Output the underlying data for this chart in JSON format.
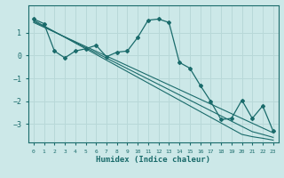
{
  "xlabel": "Humidex (Indice chaleur)",
  "bg_color": "#cce8e8",
  "line_color": "#1a6b6b",
  "grid_color": "#b8d8d8",
  "x_data": [
    0,
    1,
    2,
    3,
    4,
    5,
    6,
    7,
    8,
    9,
    10,
    11,
    12,
    13,
    14,
    15,
    16,
    17,
    18,
    19,
    20,
    21,
    22,
    23
  ],
  "y_main": [
    1.6,
    1.4,
    0.2,
    -0.1,
    0.2,
    0.3,
    0.45,
    -0.05,
    0.15,
    0.2,
    0.8,
    1.55,
    1.6,
    1.45,
    -0.3,
    -0.55,
    -1.3,
    -2.0,
    -2.8,
    -2.75,
    -1.95,
    -2.75,
    -2.2,
    -3.3
  ],
  "y_line1": [
    1.55,
    1.3,
    1.05,
    0.8,
    0.55,
    0.3,
    0.05,
    -0.2,
    -0.45,
    -0.7,
    -0.95,
    -1.2,
    -1.45,
    -1.7,
    -1.95,
    -2.2,
    -2.45,
    -2.7,
    -2.95,
    -3.2,
    -3.45,
    -3.55,
    -3.62,
    -3.7
  ],
  "y_line2": [
    1.5,
    1.27,
    1.04,
    0.81,
    0.58,
    0.35,
    0.12,
    -0.11,
    -0.34,
    -0.57,
    -0.8,
    -1.03,
    -1.26,
    -1.49,
    -1.72,
    -1.95,
    -2.18,
    -2.41,
    -2.64,
    -2.87,
    -3.1,
    -3.33,
    -3.45,
    -3.58
  ],
  "y_line3": [
    1.45,
    1.24,
    1.03,
    0.82,
    0.61,
    0.4,
    0.19,
    -0.02,
    -0.23,
    -0.44,
    -0.65,
    -0.86,
    -1.07,
    -1.28,
    -1.49,
    -1.7,
    -1.91,
    -2.12,
    -2.33,
    -2.54,
    -2.75,
    -2.96,
    -3.17,
    -3.38
  ],
  "ylim": [
    -3.8,
    2.2
  ],
  "xlim": [
    -0.5,
    23.5
  ],
  "yticks": [
    1,
    0,
    -1,
    -2,
    -3
  ],
  "xticks": [
    0,
    1,
    2,
    3,
    4,
    5,
    6,
    7,
    8,
    9,
    10,
    11,
    12,
    13,
    14,
    15,
    16,
    17,
    18,
    19,
    20,
    21,
    22,
    23
  ]
}
